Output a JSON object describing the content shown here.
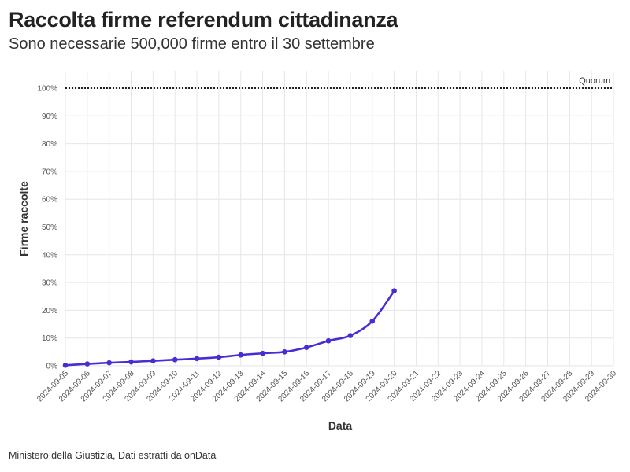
{
  "chart_data": {
    "type": "line",
    "title": "Raccolta firme referendum cittadinanza",
    "subtitle": "Sono necessarie 500,000 firme entro il 30 settembre",
    "xlabel": "Data",
    "ylabel": "Firme raccolte",
    "caption": "Ministero della Giustizia, Dati estratti da onData",
    "ylim": [
      0,
      100
    ],
    "y_ticks": [
      "0%",
      "10%",
      "20%",
      "30%",
      "40%",
      "50%",
      "60%",
      "70%",
      "80%",
      "90%",
      "100%"
    ],
    "y_tick_values": [
      0,
      10,
      20,
      30,
      40,
      50,
      60,
      70,
      80,
      90,
      100
    ],
    "x_ticks": [
      "2024-09-05",
      "2024-09-06",
      "2024-09-07",
      "2024-09-08",
      "2024-09-09",
      "2024-09-10",
      "2024-09-11",
      "2024-09-12",
      "2024-09-13",
      "2024-09-14",
      "2024-09-15",
      "2024-09-16",
      "2024-09-17",
      "2024-09-18",
      "2024-09-19",
      "2024-09-20",
      "2024-09-21",
      "2024-09-22",
      "2024-09-23",
      "2024-09-24",
      "2024-09-25",
      "2024-09-26",
      "2024-09-27",
      "2024-09-28",
      "2024-09-29",
      "2024-09-30"
    ],
    "series": [
      {
        "x": [
          "2024-09-05",
          "2024-09-06",
          "2024-09-07",
          "2024-09-08",
          "2024-09-09",
          "2024-09-10",
          "2024-09-11",
          "2024-09-12",
          "2024-09-13",
          "2024-09-14",
          "2024-09-15",
          "2024-09-16",
          "2024-09-17",
          "2024-09-18",
          "2024-09-19",
          "2024-09-20"
        ],
        "values": [
          0.2,
          0.7,
          1.1,
          1.4,
          1.8,
          2.2,
          2.6,
          3.1,
          3.9,
          4.5,
          5.0,
          6.6,
          9.0,
          10.9,
          16.1,
          27.0
        ]
      }
    ],
    "reference_line": {
      "value": 100,
      "label": "Quorum",
      "style": "dotted"
    },
    "grid": true,
    "colors": {
      "line": "#4b2bd4",
      "grid": "#e6e6e6",
      "reference": "#222222"
    }
  }
}
